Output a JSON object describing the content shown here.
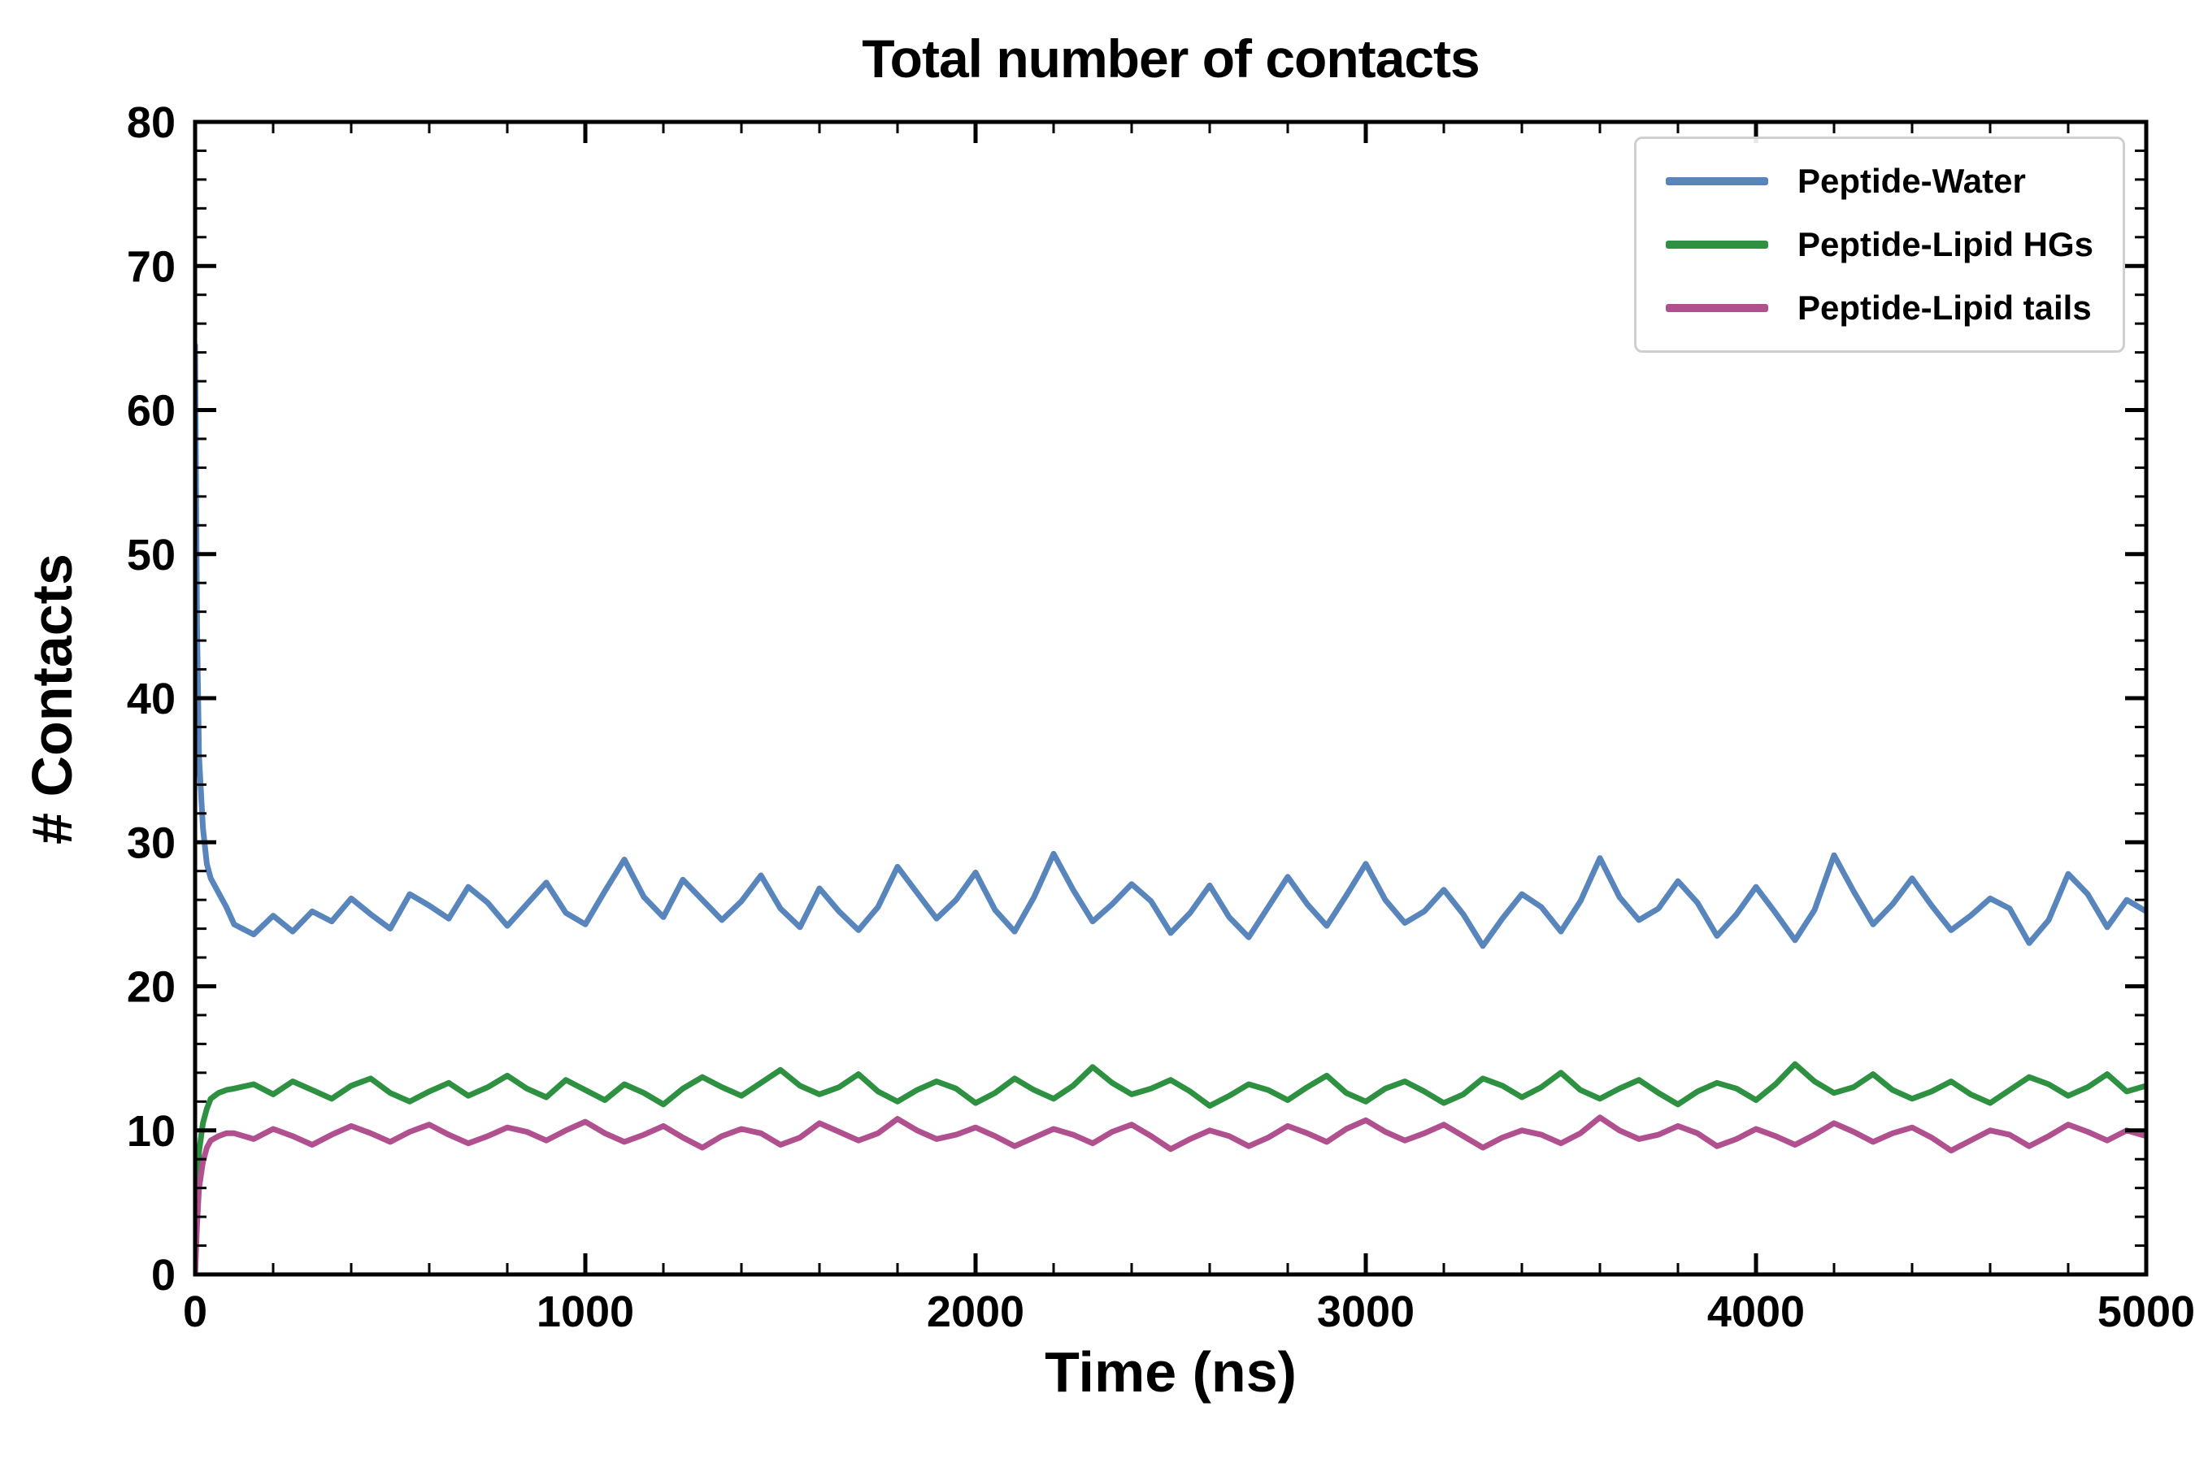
{
  "figure": {
    "background": "#ffffff",
    "frame_color": "#000000"
  },
  "chart_data": {
    "type": "line",
    "title": "Total number of contacts",
    "xlabel": "Time (ns)",
    "ylabel": "# Contacts",
    "xlim": [
      0,
      5000
    ],
    "ylim": [
      0,
      80
    ],
    "grid": false,
    "legend_position": "upper right",
    "x_tick_labels": [
      "0",
      "1000",
      "2000",
      "3000",
      "4000",
      "5000"
    ],
    "y_tick_labels": [
      "0",
      "10",
      "20",
      "30",
      "40",
      "50",
      "60",
      "70",
      "80"
    ],
    "x_major_tick_step": 1000,
    "x_minor_tick_step": 200,
    "y_major_tick_step": 10,
    "y_minor_tick_step": 2,
    "x": [
      0,
      5,
      10,
      20,
      30,
      40,
      60,
      80,
      100,
      150,
      200,
      250,
      300,
      350,
      400,
      450,
      500,
      550,
      600,
      650,
      700,
      750,
      800,
      850,
      900,
      950,
      1000,
      1050,
      1100,
      1150,
      1200,
      1250,
      1300,
      1350,
      1400,
      1450,
      1500,
      1550,
      1600,
      1650,
      1700,
      1750,
      1800,
      1850,
      1900,
      1950,
      2000,
      2050,
      2100,
      2150,
      2200,
      2250,
      2300,
      2350,
      2400,
      2450,
      2500,
      2550,
      2600,
      2650,
      2700,
      2750,
      2800,
      2850,
      2900,
      2950,
      3000,
      3050,
      3100,
      3150,
      3200,
      3250,
      3300,
      3350,
      3400,
      3450,
      3500,
      3550,
      3600,
      3650,
      3700,
      3750,
      3800,
      3850,
      3900,
      3950,
      4000,
      4050,
      4100,
      4150,
      4200,
      4250,
      4300,
      4350,
      4400,
      4450,
      4500,
      4550,
      4600,
      4650,
      4700,
      4750,
      4800,
      4850,
      4900,
      4950,
      5000
    ],
    "series": [
      {
        "name": "Peptide-Water",
        "color": "#5885BC",
        "mean_plateau": 25.4,
        "values": [
          64.5,
          45.0,
          36.0,
          31.0,
          28.5,
          27.5,
          26.5,
          25.5,
          24.3,
          23.6,
          24.9,
          23.8,
          25.2,
          24.5,
          26.1,
          25.0,
          24.0,
          26.4,
          25.6,
          24.7,
          26.9,
          25.8,
          24.2,
          25.7,
          27.2,
          25.1,
          24.3,
          26.6,
          28.8,
          26.2,
          24.8,
          27.4,
          26.0,
          24.6,
          25.9,
          27.7,
          25.4,
          24.1,
          26.8,
          25.2,
          23.9,
          25.5,
          28.3,
          26.5,
          24.7,
          26.0,
          27.9,
          25.3,
          23.8,
          26.2,
          29.2,
          26.7,
          24.5,
          25.7,
          27.1,
          25.9,
          23.7,
          25.1,
          27.0,
          24.8,
          23.4,
          25.5,
          27.6,
          25.7,
          24.2,
          26.3,
          28.5,
          26.0,
          24.4,
          25.2,
          26.7,
          25.0,
          22.8,
          24.7,
          26.4,
          25.5,
          23.8,
          25.9,
          28.9,
          26.2,
          24.6,
          25.4,
          27.3,
          25.8,
          23.5,
          25.0,
          26.9,
          25.1,
          23.2,
          25.3,
          29.1,
          26.6,
          24.3,
          25.7,
          27.5,
          25.6,
          23.9,
          24.9,
          26.1,
          25.4,
          23.0,
          24.6,
          27.8,
          26.4,
          24.1,
          26.0,
          25.2
        ]
      },
      {
        "name": "Peptide-Lipid HGs",
        "color": "#2E9142",
        "mean_plateau": 12.8,
        "values": [
          0,
          5.5,
          8.5,
          10.5,
          11.5,
          12.2,
          12.6,
          12.8,
          12.9,
          13.2,
          12.5,
          13.4,
          12.8,
          12.2,
          13.1,
          13.6,
          12.6,
          12.0,
          12.7,
          13.3,
          12.4,
          13.0,
          13.8,
          12.9,
          12.3,
          13.5,
          12.8,
          12.1,
          13.2,
          12.6,
          11.8,
          12.9,
          13.7,
          13.0,
          12.4,
          13.3,
          14.2,
          13.1,
          12.5,
          13.0,
          13.9,
          12.7,
          12.0,
          12.8,
          13.4,
          12.9,
          11.9,
          12.6,
          13.6,
          12.8,
          12.2,
          13.1,
          14.4,
          13.3,
          12.5,
          12.9,
          13.5,
          12.7,
          11.7,
          12.4,
          13.2,
          12.8,
          12.1,
          13.0,
          13.8,
          12.6,
          12.0,
          12.9,
          13.4,
          12.7,
          11.9,
          12.5,
          13.6,
          13.1,
          12.3,
          13.0,
          14.0,
          12.8,
          12.2,
          12.9,
          13.5,
          12.6,
          11.8,
          12.7,
          13.3,
          12.9,
          12.1,
          13.2,
          14.6,
          13.4,
          12.6,
          13.0,
          13.9,
          12.8,
          12.2,
          12.7,
          13.4,
          12.5,
          11.9,
          12.8,
          13.7,
          13.2,
          12.4,
          13.0,
          13.9,
          12.7,
          13.1
        ]
      },
      {
        "name": "Peptide-Lipid tails",
        "color": "#B1508E",
        "mean_plateau": 9.7,
        "values": [
          0,
          3.5,
          6.0,
          7.8,
          8.8,
          9.3,
          9.6,
          9.8,
          9.8,
          9.4,
          10.1,
          9.6,
          9.0,
          9.7,
          10.3,
          9.8,
          9.2,
          9.9,
          10.4,
          9.7,
          9.1,
          9.6,
          10.2,
          9.9,
          9.3,
          10.0,
          10.6,
          9.8,
          9.2,
          9.7,
          10.3,
          9.5,
          8.8,
          9.6,
          10.1,
          9.8,
          9.0,
          9.5,
          10.5,
          9.9,
          9.3,
          9.8,
          10.8,
          10.0,
          9.4,
          9.7,
          10.2,
          9.6,
          8.9,
          9.5,
          10.1,
          9.7,
          9.1,
          9.9,
          10.4,
          9.6,
          8.7,
          9.4,
          10.0,
          9.6,
          8.9,
          9.5,
          10.3,
          9.8,
          9.2,
          10.1,
          10.7,
          9.9,
          9.3,
          9.8,
          10.4,
          9.6,
          8.8,
          9.5,
          10.0,
          9.7,
          9.1,
          9.8,
          10.9,
          10.0,
          9.4,
          9.7,
          10.3,
          9.8,
          8.9,
          9.4,
          10.1,
          9.6,
          9.0,
          9.7,
          10.5,
          9.9,
          9.2,
          9.8,
          10.2,
          9.5,
          8.6,
          9.3,
          10.0,
          9.7,
          8.9,
          9.6,
          10.4,
          9.9,
          9.3,
          10.0,
          9.6
        ]
      }
    ]
  }
}
